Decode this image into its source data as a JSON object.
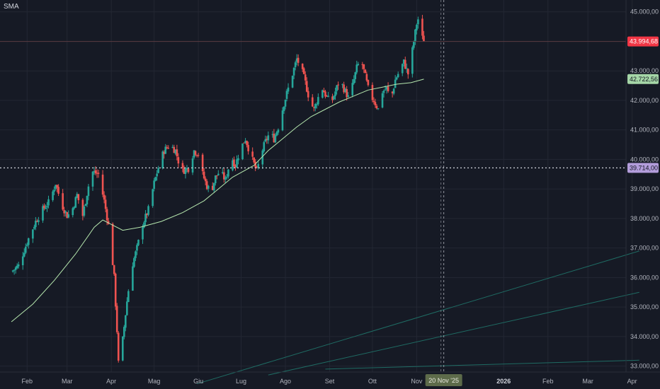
{
  "indicator": {
    "label": "SMA"
  },
  "colors": {
    "background": "#161a25",
    "grid": "#232733",
    "bull": "#26a69a",
    "bear": "#ef5350",
    "sma": "#b6e7ae",
    "last_price_tag": "#f23645",
    "sma_tag": "#a5d6a7",
    "crosshair_tag": "#b39ddb",
    "trend": "#1f6b63",
    "text": "#b2b5be"
  },
  "chart_data": {
    "type": "candlestick",
    "ylim": [
      32800,
      45400
    ],
    "yticks": [
      "33.000,00",
      "34.000,00",
      "35.000,00",
      "36.000,00",
      "37.000,00",
      "38.000,00",
      "39.000,00",
      "40.000,00",
      "41.000,00",
      "42.000,00",
      "43.000,00",
      "44.000,00",
      "45.000,00"
    ],
    "ytick_values": [
      33000,
      34000,
      35000,
      36000,
      37000,
      38000,
      39000,
      40000,
      41000,
      42000,
      43000,
      44000,
      45000
    ],
    "xaxis_labels": [
      {
        "label": "Feb",
        "day": 31,
        "bold": false
      },
      {
        "label": "Mar",
        "day": 59,
        "bold": false
      },
      {
        "label": "Apr",
        "day": 90,
        "bold": false
      },
      {
        "label": "Mag",
        "day": 120,
        "bold": false
      },
      {
        "label": "Giu",
        "day": 151,
        "bold": false
      },
      {
        "label": "Lug",
        "day": 181,
        "bold": false
      },
      {
        "label": "Ago",
        "day": 212,
        "bold": false
      },
      {
        "label": "Set",
        "day": 243,
        "bold": false
      },
      {
        "label": "Ott",
        "day": 273,
        "bold": false
      },
      {
        "label": "Nov",
        "day": 304,
        "bold": false
      },
      {
        "label": "2026",
        "day": 365,
        "bold": true
      },
      {
        "label": "Feb",
        "day": 396,
        "bold": false
      },
      {
        "label": "Mar",
        "day": 424,
        "bold": false
      },
      {
        "label": "Apr",
        "day": 455,
        "bold": false
      }
    ],
    "last_price": {
      "value": 43994.68,
      "label": "43.994,68"
    },
    "sma_value": {
      "value": 42722.56,
      "label": "42.722,56"
    },
    "crosshair": {
      "value": 39714.0,
      "label": "39.714,00",
      "date_label": "20 Nov '25",
      "day": 323
    },
    "vertical_marker_day": 321,
    "close_path": [
      [
        20,
        36200
      ],
      [
        25,
        36400
      ],
      [
        31,
        37200
      ],
      [
        37,
        37900
      ],
      [
        42,
        38300
      ],
      [
        47,
        38600
      ],
      [
        51,
        39200
      ],
      [
        55,
        38500
      ],
      [
        59,
        38100
      ],
      [
        62,
        38200
      ],
      [
        66,
        38800
      ],
      [
        70,
        38100
      ],
      [
        76,
        39600
      ],
      [
        81,
        39500
      ],
      [
        85,
        38600
      ],
      [
        89,
        37500
      ],
      [
        92,
        36000
      ],
      [
        94,
        34200
      ],
      [
        95,
        33100
      ],
      [
        96,
        32800
      ],
      [
        98,
        33900
      ],
      [
        101,
        35200
      ],
      [
        104,
        36300
      ],
      [
        108,
        37000
      ],
      [
        112,
        37800
      ],
      [
        116,
        38300
      ],
      [
        120,
        39200
      ],
      [
        124,
        39900
      ],
      [
        127,
        40300
      ],
      [
        131,
        40500
      ],
      [
        135,
        40300
      ],
      [
        139,
        39600
      ],
      [
        144,
        39700
      ],
      [
        148,
        40300
      ],
      [
        151,
        40200
      ],
      [
        154,
        39500
      ],
      [
        157,
        39100
      ],
      [
        160,
        38900
      ],
      [
        163,
        39400
      ],
      [
        166,
        39600
      ],
      [
        170,
        39300
      ],
      [
        174,
        40100
      ],
      [
        177,
        39800
      ],
      [
        180,
        40300
      ],
      [
        184,
        40700
      ],
      [
        188,
        40100
      ],
      [
        192,
        39600
      ],
      [
        195,
        40200
      ],
      [
        198,
        40600
      ],
      [
        201,
        40900
      ],
      [
        204,
        40700
      ],
      [
        207,
        41100
      ],
      [
        211,
        41900
      ],
      [
        214,
        42400
      ],
      [
        217,
        42900
      ],
      [
        220,
        43400
      ],
      [
        223,
        43100
      ],
      [
        226,
        42600
      ],
      [
        229,
        42000
      ],
      [
        232,
        41700
      ],
      [
        235,
        42100
      ],
      [
        238,
        42400
      ],
      [
        241,
        42100
      ],
      [
        244,
        41900
      ],
      [
        247,
        42300
      ],
      [
        250,
        42700
      ],
      [
        253,
        42400
      ],
      [
        256,
        42100
      ],
      [
        259,
        42500
      ],
      [
        262,
        43100
      ],
      [
        265,
        43400
      ],
      [
        268,
        42800
      ],
      [
        271,
        42200
      ],
      [
        274,
        42000
      ],
      [
        277,
        41700
      ],
      [
        280,
        42300
      ],
      [
        283,
        42400
      ],
      [
        286,
        42000
      ],
      [
        289,
        42700
      ],
      [
        292,
        43000
      ],
      [
        295,
        43300
      ],
      [
        298,
        42900
      ],
      [
        300,
        43400
      ],
      [
        302,
        44000
      ],
      [
        304,
        44600
      ],
      [
        306,
        44900
      ],
      [
        308,
        44100
      ],
      [
        309,
        43995
      ]
    ],
    "sma_path": [
      [
        20,
        34500
      ],
      [
        35,
        35100
      ],
      [
        50,
        35900
      ],
      [
        65,
        36800
      ],
      [
        78,
        37700
      ],
      [
        84,
        37950
      ],
      [
        90,
        37800
      ],
      [
        98,
        37600
      ],
      [
        110,
        37700
      ],
      [
        125,
        37900
      ],
      [
        140,
        38200
      ],
      [
        155,
        38600
      ],
      [
        165,
        39000
      ],
      [
        175,
        39400
      ],
      [
        190,
        39800
      ],
      [
        200,
        40300
      ],
      [
        210,
        40700
      ],
      [
        220,
        41100
      ],
      [
        230,
        41450
      ],
      [
        240,
        41700
      ],
      [
        250,
        41950
      ],
      [
        260,
        42150
      ],
      [
        270,
        42350
      ],
      [
        280,
        42450
      ],
      [
        290,
        42550
      ],
      [
        300,
        42600
      ],
      [
        309,
        42720
      ]
    ],
    "trend_lines": [
      {
        "p1": [
          150,
          32400
        ],
        "p2": [
          460,
          36900
        ]
      },
      {
        "p1": [
          200,
          32700
        ],
        "p2": [
          460,
          35500
        ]
      },
      {
        "p1": [
          240,
          32900
        ],
        "p2": [
          460,
          33200
        ]
      }
    ]
  }
}
